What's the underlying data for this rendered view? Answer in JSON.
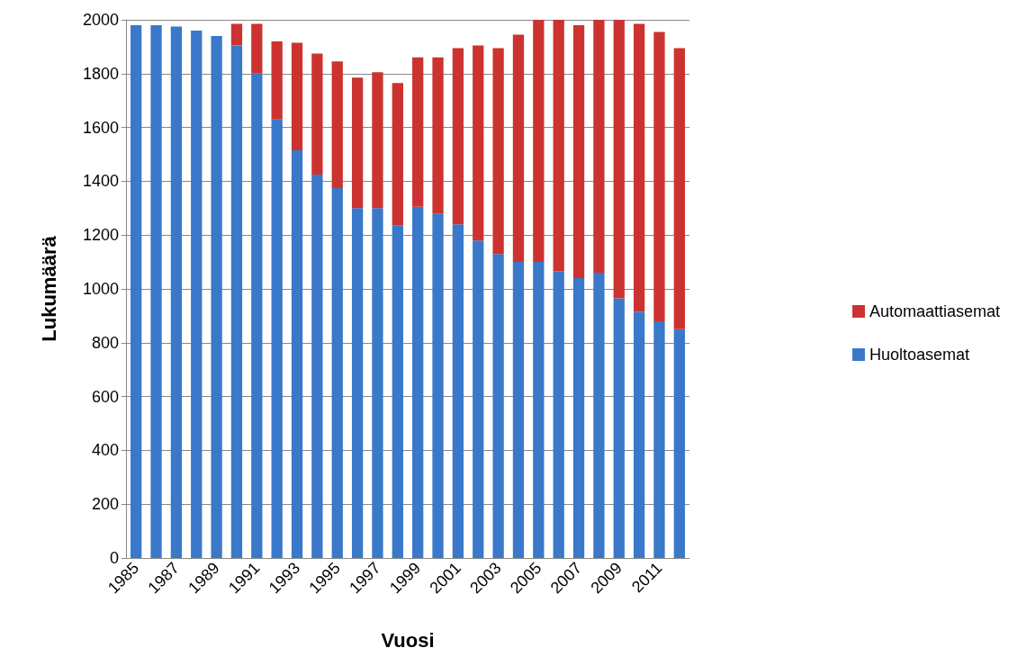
{
  "chart_data": {
    "type": "bar",
    "stacked": true,
    "xlabel": "Vuosi",
    "ylabel": "Lukumäärä",
    "categories": [
      "1985",
      null,
      "1987",
      null,
      "1989",
      null,
      "1991",
      null,
      "1993",
      null,
      "1995",
      null,
      "1997",
      null,
      "1999",
      null,
      "2001",
      null,
      "2003",
      null,
      "2005",
      null,
      "2007",
      null,
      "2009",
      null,
      "2011",
      null
    ],
    "series": [
      {
        "name": "Huoltoasemat",
        "color": "#3a78c9",
        "values": [
          1980,
          1980,
          1975,
          1960,
          1940,
          1905,
          1800,
          1630,
          1515,
          1425,
          1375,
          1300,
          1300,
          1235,
          1305,
          1280,
          1240,
          1180,
          1130,
          1100,
          1100,
          1065,
          1040,
          1060,
          965,
          915,
          880,
          850
        ]
      },
      {
        "name": "Automaattiasemat",
        "color": "#cc3330",
        "values": [
          0,
          0,
          0,
          0,
          0,
          80,
          185,
          290,
          400,
          450,
          470,
          485,
          505,
          530,
          555,
          580,
          655,
          725,
          765,
          845,
          900,
          935,
          940,
          940,
          1035,
          1070,
          1075,
          1045
        ]
      }
    ],
    "ylim": [
      0,
      2000
    ],
    "yticks": [
      0,
      200,
      400,
      600,
      800,
      1000,
      1200,
      1400,
      1600,
      1800,
      2000
    ],
    "grid": "y",
    "legend": "right"
  }
}
